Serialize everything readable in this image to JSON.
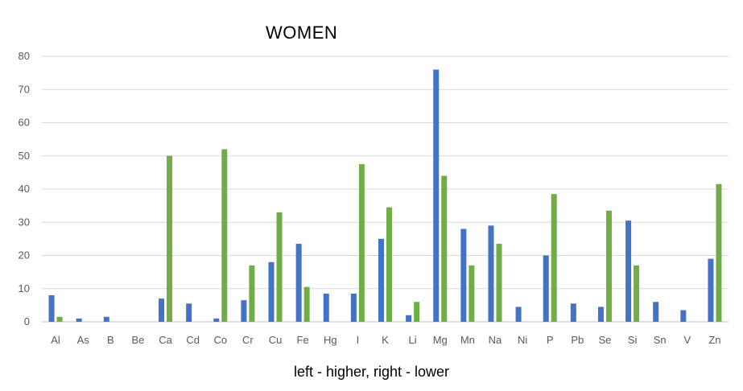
{
  "chart_data": {
    "type": "bar",
    "title": "WOMEN",
    "xlabel": "left - higher, right - lower",
    "ylabel": "",
    "ylim": [
      0,
      80
    ],
    "yticks": [
      0,
      10,
      20,
      30,
      40,
      50,
      60,
      70,
      80
    ],
    "grid": true,
    "legend": "none",
    "categories": [
      "Al",
      "As",
      "B",
      "Be",
      "Ca",
      "Cd",
      "Co",
      "Cr",
      "Cu",
      "Fe",
      "Hg",
      "I",
      "K",
      "Li",
      "Mg",
      "Mn",
      "Na",
      "Ni",
      "P",
      "Pb",
      "Se",
      "Si",
      "Sn",
      "V",
      "Zn"
    ],
    "series": [
      {
        "color": "#4472C4",
        "values": [
          8,
          1,
          1.5,
          0,
          7,
          5.5,
          1,
          6.5,
          18,
          23.5,
          8.5,
          8.5,
          25,
          2,
          76,
          28,
          29,
          4.5,
          20,
          5.5,
          4.5,
          30.5,
          6,
          3.5,
          19
        ]
      },
      {
        "color": "#70AD47",
        "values": [
          1.5,
          0,
          0,
          0,
          50,
          0,
          52,
          17,
          33,
          10.5,
          0,
          47.5,
          34.5,
          6,
          44,
          17,
          23.5,
          0,
          38.5,
          0,
          33.5,
          17,
          0,
          0,
          41.5
        ]
      }
    ]
  }
}
